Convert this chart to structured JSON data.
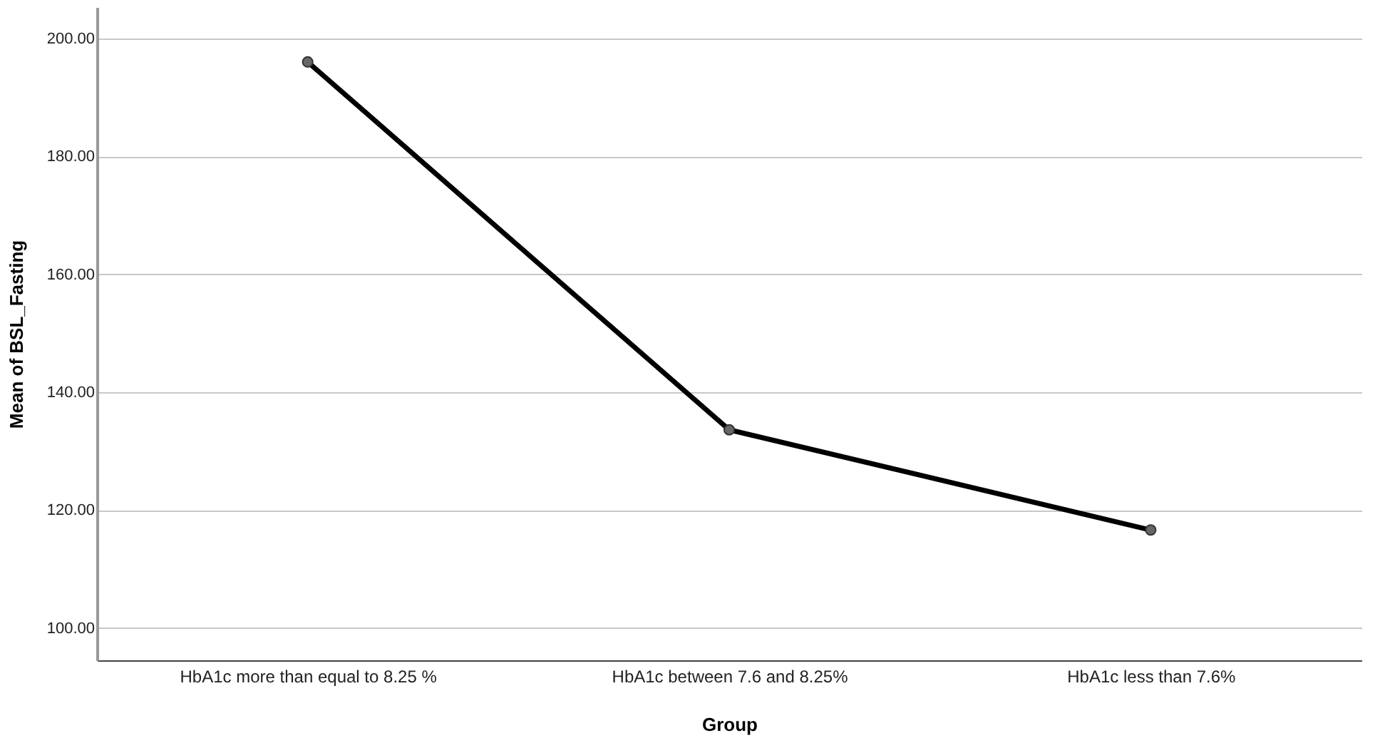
{
  "chart_data": {
    "type": "line",
    "xlabel": "Group",
    "ylabel": "Mean of BSL_Fasting",
    "categories": [
      "HbA1c more than equal to 8.25 %",
      "HbA1c between 7.6 and 8.25%",
      "HbA1c less than 7.6%"
    ],
    "series": [
      {
        "color": "#000000",
        "values": [
          196.0,
          133.6,
          116.6
        ]
      }
    ],
    "ylim": [
      94.5,
      205.3
    ],
    "yticks": [
      {
        "value": 100,
        "label": "100.00"
      },
      {
        "value": 120,
        "label": "120.00"
      },
      {
        "value": 140,
        "label": "140.00"
      },
      {
        "value": 160,
        "label": "160.00"
      },
      {
        "value": 180,
        "label": "180.00"
      },
      {
        "value": 200,
        "label": "200.00"
      }
    ],
    "grid": "y",
    "marker": "circle",
    "line_style": "solid"
  }
}
